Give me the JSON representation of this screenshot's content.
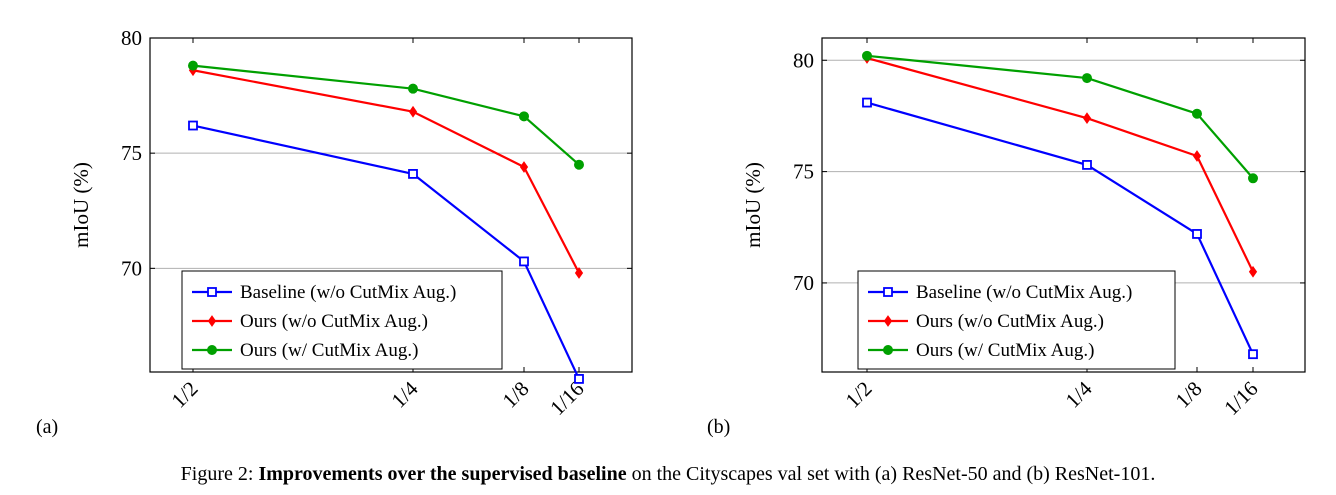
{
  "chart_data": [
    {
      "type": "line",
      "panel": "(a)",
      "title": "",
      "xlabel": "",
      "ylabel": "mIoU (%)",
      "categories": [
        "1/2",
        "1/4",
        "1/8",
        "1/16"
      ],
      "ylim": [
        65.5,
        80
      ],
      "yticks": [
        70,
        75,
        80
      ],
      "grid": "horizontal",
      "legend_position": "bottom-left",
      "series": [
        {
          "name": "Baseline (w/o CutMix Aug.)",
          "color": "#0000ff",
          "marker": "square-open",
          "values": [
            76.2,
            74.1,
            70.3,
            65.2
          ]
        },
        {
          "name": "Ours (w/o CutMix Aug.)",
          "color": "#ff0000",
          "marker": "diamond",
          "values": [
            78.6,
            76.8,
            74.4,
            69.8
          ]
        },
        {
          "name": "Ours (w/ CutMix Aug.)",
          "color": "#00a000",
          "marker": "circle",
          "values": [
            78.8,
            77.8,
            76.6,
            74.5
          ]
        }
      ]
    },
    {
      "type": "line",
      "panel": "(b)",
      "title": "",
      "xlabel": "",
      "ylabel": "mIoU (%)",
      "categories": [
        "1/2",
        "1/4",
        "1/8",
        "1/16"
      ],
      "ylim": [
        66.0,
        81.0
      ],
      "yticks": [
        70,
        75,
        80
      ],
      "grid": "horizontal",
      "legend_position": "bottom-left",
      "series": [
        {
          "name": "Baseline (w/o CutMix Aug.)",
          "color": "#0000ff",
          "marker": "square-open",
          "values": [
            78.1,
            75.3,
            72.2,
            66.8
          ]
        },
        {
          "name": "Ours (w/o CutMix Aug.)",
          "color": "#ff0000",
          "marker": "diamond",
          "values": [
            80.1,
            77.4,
            75.7,
            70.5
          ]
        },
        {
          "name": "Ours (w/ CutMix Aug.)",
          "color": "#00a000",
          "marker": "circle",
          "values": [
            80.2,
            79.2,
            77.6,
            74.7
          ]
        }
      ]
    }
  ],
  "caption": {
    "prefix": "Figure 2: ",
    "bold": "Improvements over the supervised baseline",
    "rest": " on the Cityscapes val set with (a) ResNet-50 and (b) ResNet-101."
  }
}
